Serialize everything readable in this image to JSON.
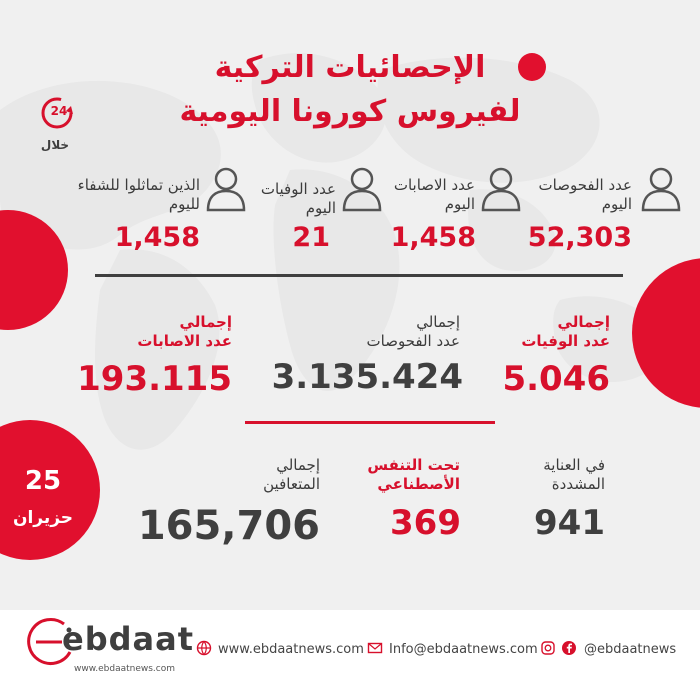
{
  "header": {
    "title_line1": "الإحصائيات التركية",
    "title_line2": "لفيروس كورونا اليومية",
    "badge_number": "24",
    "badge_label": "خلال"
  },
  "daily": [
    {
      "label_line1": "عدد الفحوصات",
      "label_line2": "اليوم",
      "value": "52,303"
    },
    {
      "label_line1": "عدد الاصابات",
      "label_line2": "اليوم",
      "value": "1,458"
    },
    {
      "label_line1": "عدد الوفيات",
      "label_line2": "اليوم",
      "value": "21"
    },
    {
      "label_line1": "الذين تماثلوا للشفاء",
      "label_line2": "لليوم",
      "value": "1,458"
    }
  ],
  "totals": [
    {
      "label_line1": "إجمالي",
      "label_line2": "عدد الوفيات",
      "value": "5.046"
    },
    {
      "label_line1": "إجمالي",
      "label_line2": "عدد الفحوصات",
      "value": "3.135.424"
    },
    {
      "label_line1": "إجمالي",
      "label_line2": "عدد الاصابات",
      "value": "193.115"
    }
  ],
  "status": [
    {
      "label_line1": "في العناية",
      "label_line2": "المشددة",
      "value": "941"
    },
    {
      "label_line1": "تحت التنفس",
      "label_line2": "الأصطناعي",
      "value": "369"
    },
    {
      "label_line1": "إجمالي",
      "label_line2": "المتعافين",
      "value": "165,706"
    }
  ],
  "date": {
    "day": "25",
    "month": "حزيران"
  },
  "brand": {
    "logo_text": "ebdaat",
    "url": "www.ebdaatnews.com"
  },
  "footer": {
    "website": "www.ebdaatnews.com",
    "email": "Info@ebdaatnews.com",
    "social": "@ebdaatnews"
  },
  "colors": {
    "accent": "#d7102c",
    "dark": "#3f3f3f",
    "background": "#f0f0f0"
  }
}
